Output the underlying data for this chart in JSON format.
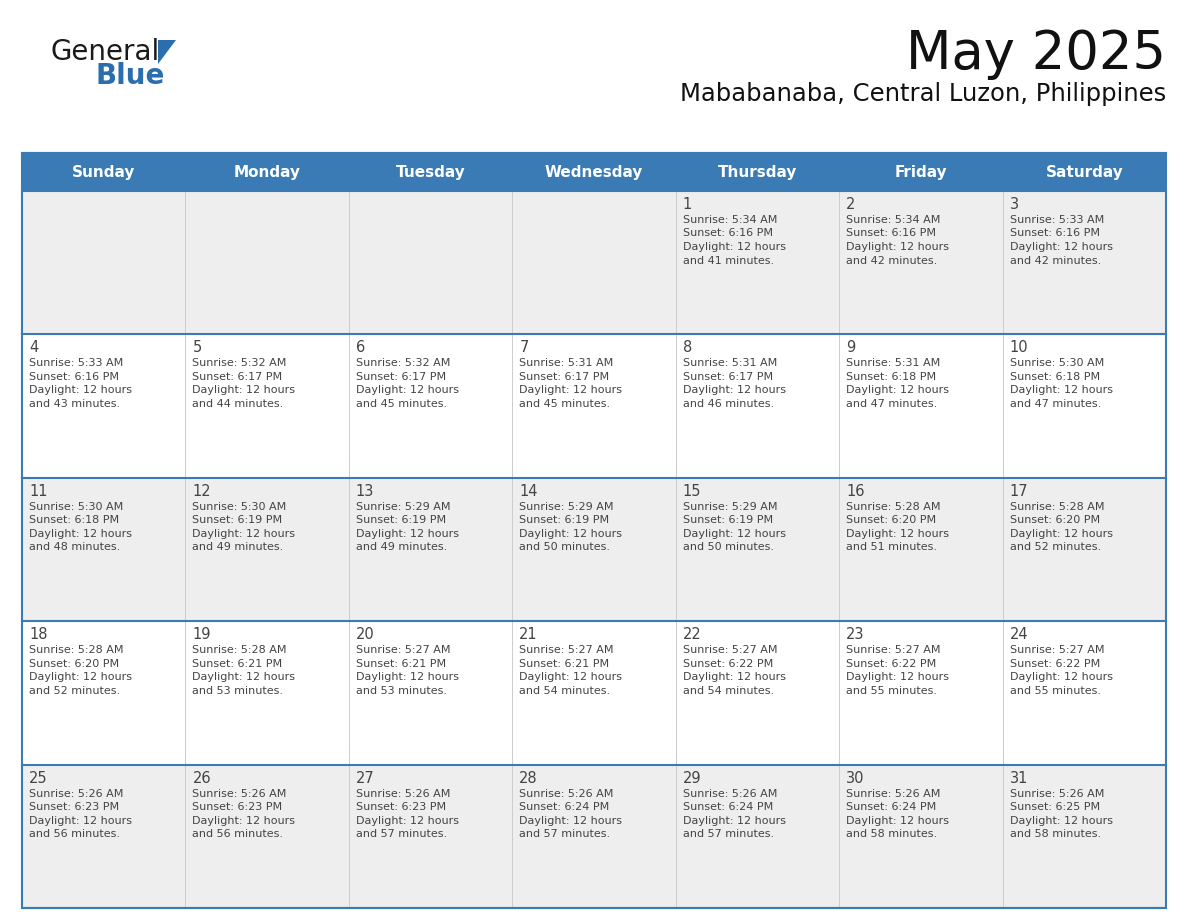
{
  "title": "May 2025",
  "subtitle": "Mababanaba, Central Luzon, Philippines",
  "header_bg": "#3a7ab5",
  "header_text_color": "#ffffff",
  "cell_bg_light": "#eeeeee",
  "cell_bg_white": "#ffffff",
  "day_names": [
    "Sunday",
    "Monday",
    "Tuesday",
    "Wednesday",
    "Thursday",
    "Friday",
    "Saturday"
  ],
  "grid_line_color": "#3a7ab5",
  "text_color": "#444444",
  "row_colors": [
    "#eeeeee",
    "#ffffff",
    "#eeeeee",
    "#ffffff",
    "#eeeeee"
  ],
  "days": [
    {
      "day": 1,
      "col": 4,
      "row": 0,
      "sunrise": "5:34 AM",
      "sunset": "6:16 PM",
      "daylight_hrs": "12 hours",
      "daylight_min": "41 minutes"
    },
    {
      "day": 2,
      "col": 5,
      "row": 0,
      "sunrise": "5:34 AM",
      "sunset": "6:16 PM",
      "daylight_hrs": "12 hours",
      "daylight_min": "42 minutes"
    },
    {
      "day": 3,
      "col": 6,
      "row": 0,
      "sunrise": "5:33 AM",
      "sunset": "6:16 PM",
      "daylight_hrs": "12 hours",
      "daylight_min": "42 minutes"
    },
    {
      "day": 4,
      "col": 0,
      "row": 1,
      "sunrise": "5:33 AM",
      "sunset": "6:16 PM",
      "daylight_hrs": "12 hours",
      "daylight_min": "43 minutes"
    },
    {
      "day": 5,
      "col": 1,
      "row": 1,
      "sunrise": "5:32 AM",
      "sunset": "6:17 PM",
      "daylight_hrs": "12 hours",
      "daylight_min": "44 minutes"
    },
    {
      "day": 6,
      "col": 2,
      "row": 1,
      "sunrise": "5:32 AM",
      "sunset": "6:17 PM",
      "daylight_hrs": "12 hours",
      "daylight_min": "45 minutes"
    },
    {
      "day": 7,
      "col": 3,
      "row": 1,
      "sunrise": "5:31 AM",
      "sunset": "6:17 PM",
      "daylight_hrs": "12 hours",
      "daylight_min": "45 minutes"
    },
    {
      "day": 8,
      "col": 4,
      "row": 1,
      "sunrise": "5:31 AM",
      "sunset": "6:17 PM",
      "daylight_hrs": "12 hours",
      "daylight_min": "46 minutes"
    },
    {
      "day": 9,
      "col": 5,
      "row": 1,
      "sunrise": "5:31 AM",
      "sunset": "6:18 PM",
      "daylight_hrs": "12 hours",
      "daylight_min": "47 minutes"
    },
    {
      "day": 10,
      "col": 6,
      "row": 1,
      "sunrise": "5:30 AM",
      "sunset": "6:18 PM",
      "daylight_hrs": "12 hours",
      "daylight_min": "47 minutes"
    },
    {
      "day": 11,
      "col": 0,
      "row": 2,
      "sunrise": "5:30 AM",
      "sunset": "6:18 PM",
      "daylight_hrs": "12 hours",
      "daylight_min": "48 minutes"
    },
    {
      "day": 12,
      "col": 1,
      "row": 2,
      "sunrise": "5:30 AM",
      "sunset": "6:19 PM",
      "daylight_hrs": "12 hours",
      "daylight_min": "49 minutes"
    },
    {
      "day": 13,
      "col": 2,
      "row": 2,
      "sunrise": "5:29 AM",
      "sunset": "6:19 PM",
      "daylight_hrs": "12 hours",
      "daylight_min": "49 minutes"
    },
    {
      "day": 14,
      "col": 3,
      "row": 2,
      "sunrise": "5:29 AM",
      "sunset": "6:19 PM",
      "daylight_hrs": "12 hours",
      "daylight_min": "50 minutes"
    },
    {
      "day": 15,
      "col": 4,
      "row": 2,
      "sunrise": "5:29 AM",
      "sunset": "6:19 PM",
      "daylight_hrs": "12 hours",
      "daylight_min": "50 minutes"
    },
    {
      "day": 16,
      "col": 5,
      "row": 2,
      "sunrise": "5:28 AM",
      "sunset": "6:20 PM",
      "daylight_hrs": "12 hours",
      "daylight_min": "51 minutes"
    },
    {
      "day": 17,
      "col": 6,
      "row": 2,
      "sunrise": "5:28 AM",
      "sunset": "6:20 PM",
      "daylight_hrs": "12 hours",
      "daylight_min": "52 minutes"
    },
    {
      "day": 18,
      "col": 0,
      "row": 3,
      "sunrise": "5:28 AM",
      "sunset": "6:20 PM",
      "daylight_hrs": "12 hours",
      "daylight_min": "52 minutes"
    },
    {
      "day": 19,
      "col": 1,
      "row": 3,
      "sunrise": "5:28 AM",
      "sunset": "6:21 PM",
      "daylight_hrs": "12 hours",
      "daylight_min": "53 minutes"
    },
    {
      "day": 20,
      "col": 2,
      "row": 3,
      "sunrise": "5:27 AM",
      "sunset": "6:21 PM",
      "daylight_hrs": "12 hours",
      "daylight_min": "53 minutes"
    },
    {
      "day": 21,
      "col": 3,
      "row": 3,
      "sunrise": "5:27 AM",
      "sunset": "6:21 PM",
      "daylight_hrs": "12 hours",
      "daylight_min": "54 minutes"
    },
    {
      "day": 22,
      "col": 4,
      "row": 3,
      "sunrise": "5:27 AM",
      "sunset": "6:22 PM",
      "daylight_hrs": "12 hours",
      "daylight_min": "54 minutes"
    },
    {
      "day": 23,
      "col": 5,
      "row": 3,
      "sunrise": "5:27 AM",
      "sunset": "6:22 PM",
      "daylight_hrs": "12 hours",
      "daylight_min": "55 minutes"
    },
    {
      "day": 24,
      "col": 6,
      "row": 3,
      "sunrise": "5:27 AM",
      "sunset": "6:22 PM",
      "daylight_hrs": "12 hours",
      "daylight_min": "55 minutes"
    },
    {
      "day": 25,
      "col": 0,
      "row": 4,
      "sunrise": "5:26 AM",
      "sunset": "6:23 PM",
      "daylight_hrs": "12 hours",
      "daylight_min": "56 minutes"
    },
    {
      "day": 26,
      "col": 1,
      "row": 4,
      "sunrise": "5:26 AM",
      "sunset": "6:23 PM",
      "daylight_hrs": "12 hours",
      "daylight_min": "56 minutes"
    },
    {
      "day": 27,
      "col": 2,
      "row": 4,
      "sunrise": "5:26 AM",
      "sunset": "6:23 PM",
      "daylight_hrs": "12 hours",
      "daylight_min": "57 minutes"
    },
    {
      "day": 28,
      "col": 3,
      "row": 4,
      "sunrise": "5:26 AM",
      "sunset": "6:24 PM",
      "daylight_hrs": "12 hours",
      "daylight_min": "57 minutes"
    },
    {
      "day": 29,
      "col": 4,
      "row": 4,
      "sunrise": "5:26 AM",
      "sunset": "6:24 PM",
      "daylight_hrs": "12 hours",
      "daylight_min": "57 minutes"
    },
    {
      "day": 30,
      "col": 5,
      "row": 4,
      "sunrise": "5:26 AM",
      "sunset": "6:24 PM",
      "daylight_hrs": "12 hours",
      "daylight_min": "58 minutes"
    },
    {
      "day": 31,
      "col": 6,
      "row": 4,
      "sunrise": "5:26 AM",
      "sunset": "6:25 PM",
      "daylight_hrs": "12 hours",
      "daylight_min": "58 minutes"
    }
  ]
}
